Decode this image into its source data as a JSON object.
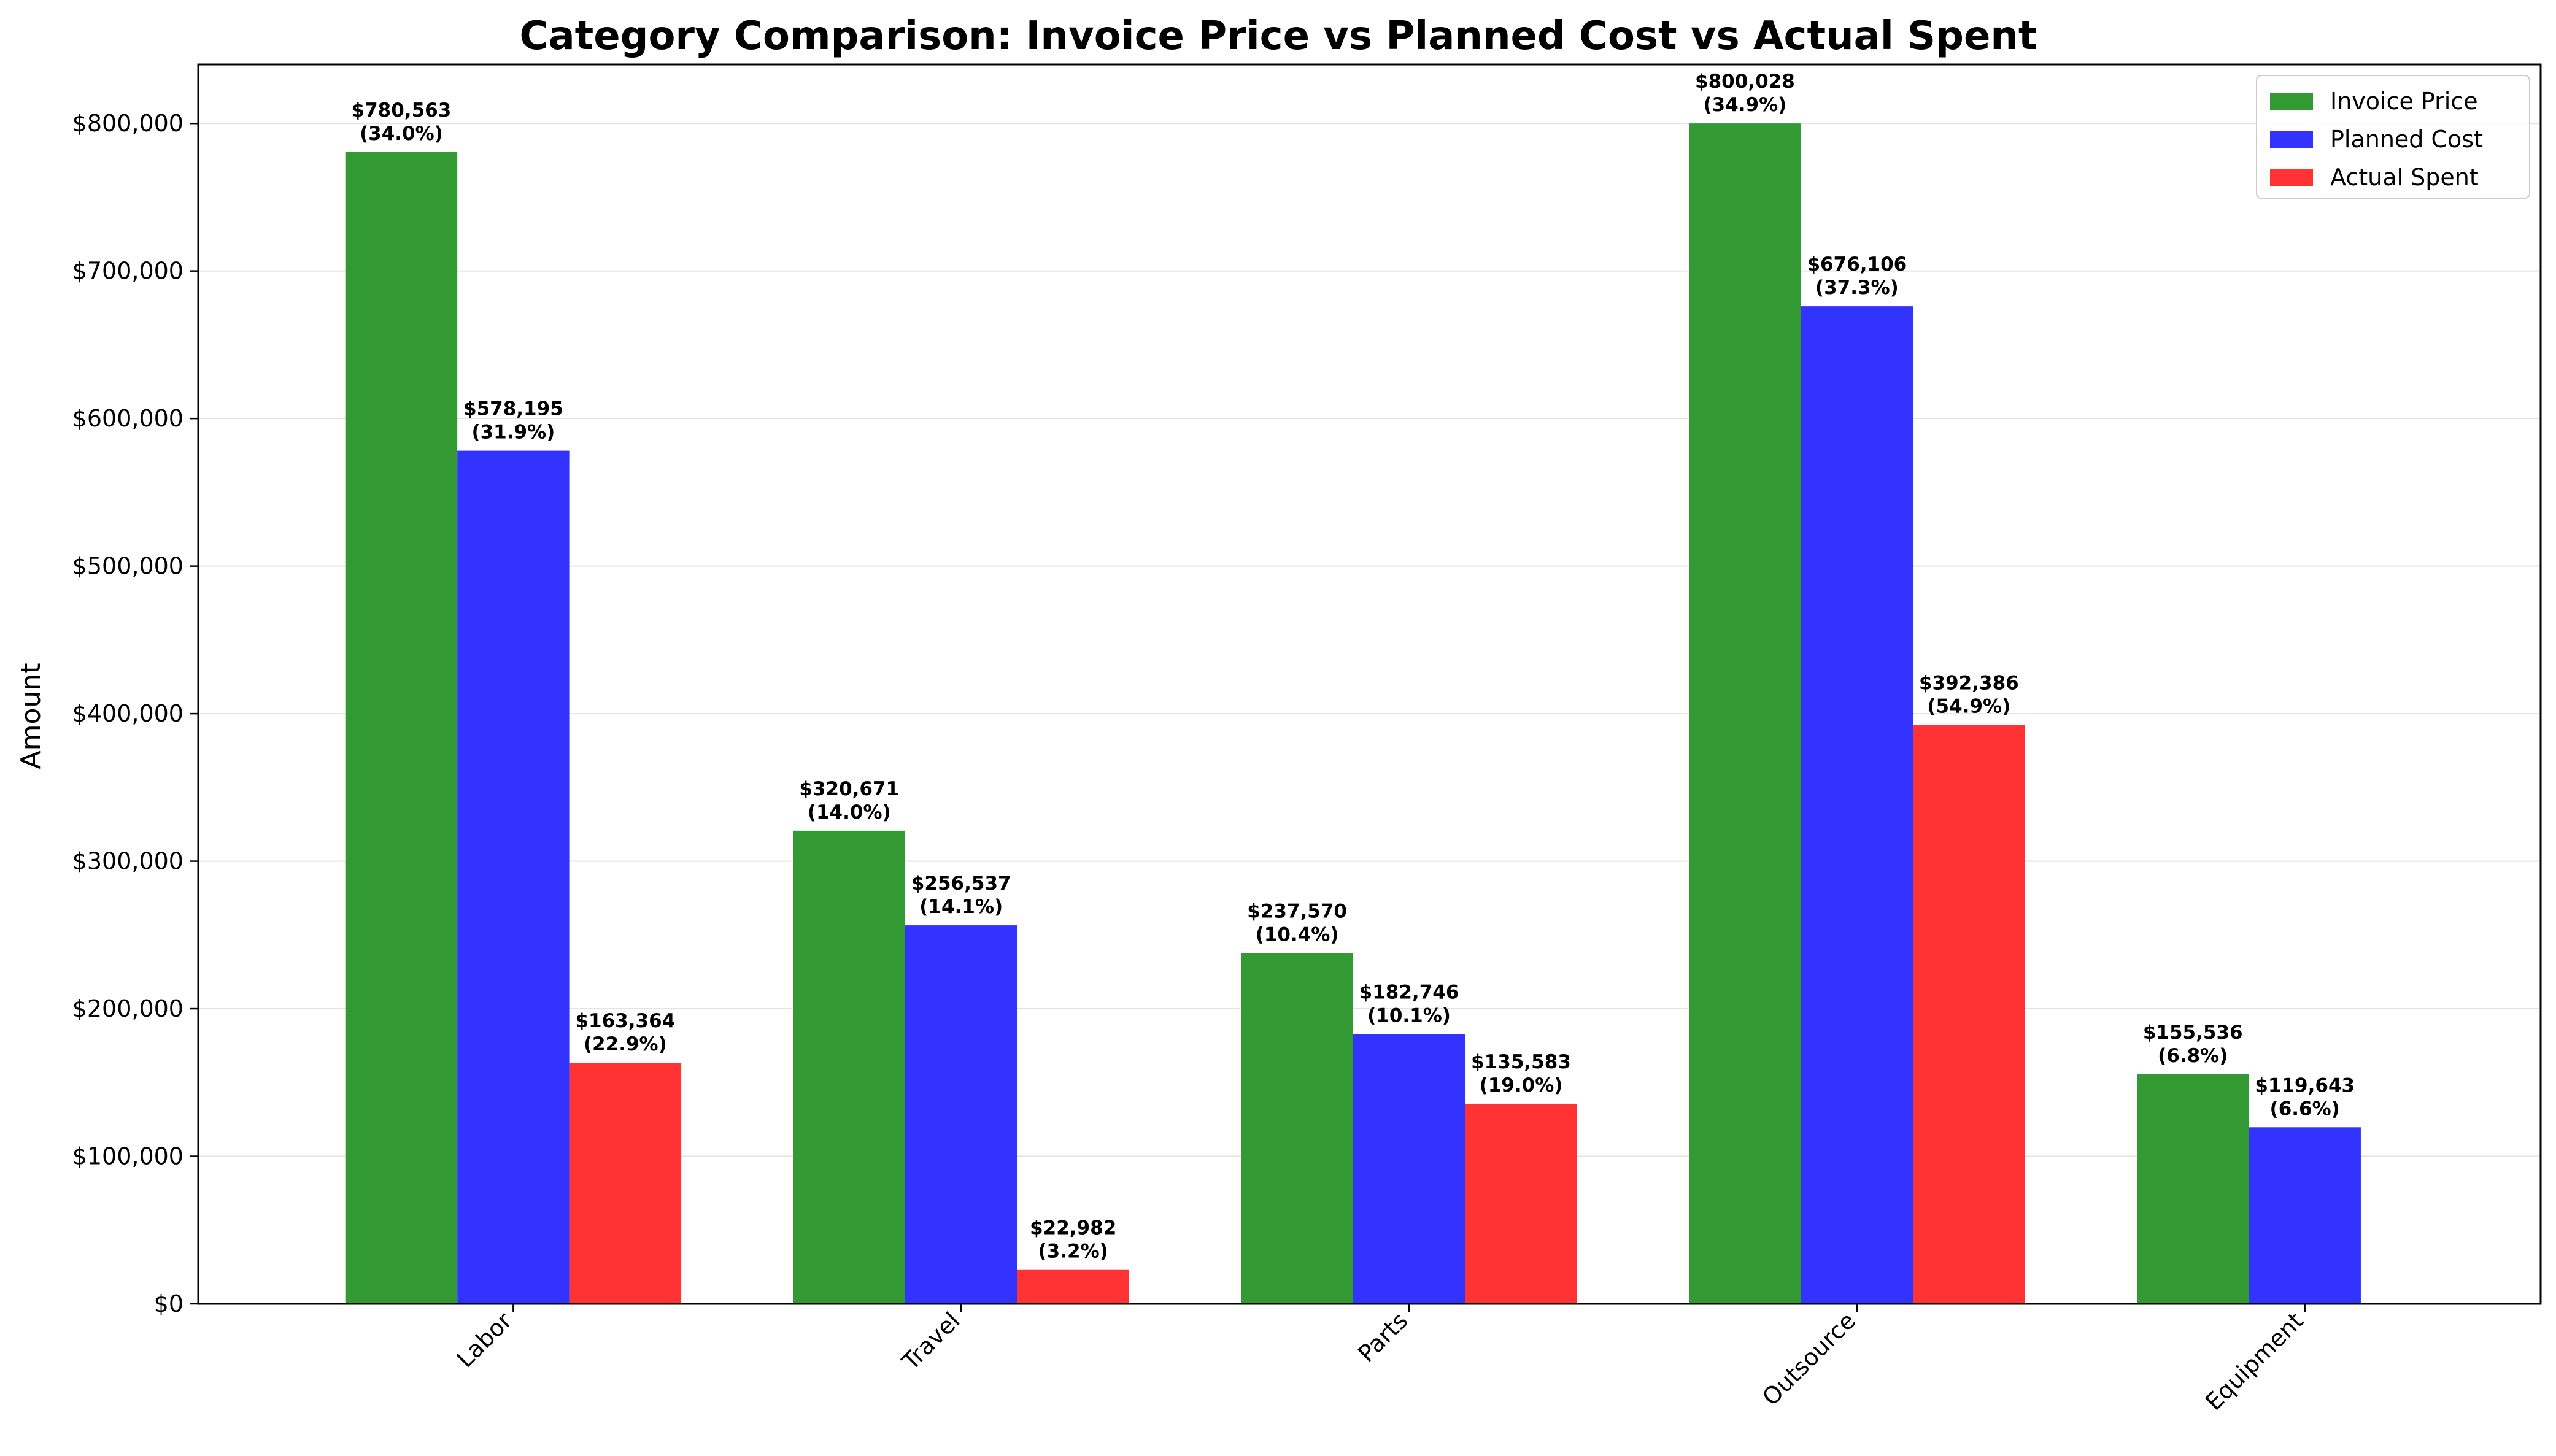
{
  "chart_data": {
    "type": "bar",
    "title": "Category Comparison: Invoice Price vs Planned Cost vs Actual Spent",
    "xlabel": "",
    "ylabel": "Amount",
    "ylim": [
      0,
      840000
    ],
    "yticks": [
      0,
      100000,
      200000,
      300000,
      400000,
      500000,
      600000,
      700000,
      800000
    ],
    "ytick_labels": [
      "$0",
      "$100,000",
      "$200,000",
      "$300,000",
      "$400,000",
      "$500,000",
      "$600,000",
      "$700,000",
      "$800,000"
    ],
    "grid": "y",
    "legend_position": "top-right",
    "categories": [
      "Labor",
      "Travel",
      "Parts",
      "Outsource",
      "Equipment"
    ],
    "series": [
      {
        "name": "Invoice Price",
        "color": "#339933",
        "values": [
          780563,
          320671,
          237570,
          800028,
          155536
        ],
        "value_labels": [
          "$780,563",
          "$320,671",
          "$237,570",
          "$800,028",
          "$155,536"
        ],
        "percent_labels": [
          "(34.0%)",
          "(14.0%)",
          "(10.4%)",
          "(34.9%)",
          "(6.8%)"
        ]
      },
      {
        "name": "Planned Cost",
        "color": "#3333ff",
        "values": [
          578195,
          256537,
          182746,
          676106,
          119643
        ],
        "value_labels": [
          "$578,195",
          "$256,537",
          "$182,746",
          "$676,106",
          "$119,643"
        ],
        "percent_labels": [
          "(31.9%)",
          "(14.1%)",
          "(10.1%)",
          "(37.3%)",
          "(6.6%)"
        ]
      },
      {
        "name": "Actual Spent",
        "color": "#ff3333",
        "values": [
          163364,
          22982,
          135583,
          392386,
          0
        ],
        "value_labels": [
          "$163,364",
          "$22,982",
          "$135,583",
          "$392,386",
          ""
        ],
        "percent_labels": [
          "(22.9%)",
          "(3.2%)",
          "(19.0%)",
          "(54.9%)",
          ""
        ]
      }
    ]
  }
}
